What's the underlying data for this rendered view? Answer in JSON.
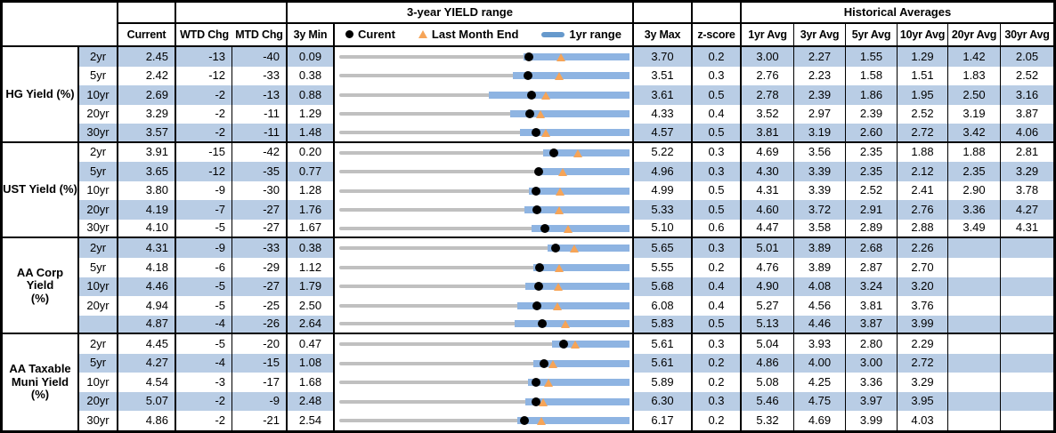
{
  "header": {
    "range_title": "3-year YIELD range",
    "hist_title": "Historical Averages",
    "current": "Current",
    "wtd": "WTD Chg",
    "mtd": "MTD Chg",
    "min3y": "3y Min",
    "max3y": "3y Max",
    "zscore": "z-score",
    "avgs": [
      "1yr Avg",
      "3yr Avg",
      "5yr Avg",
      "10yr Avg",
      "20yr Avg",
      "30yr Avg"
    ],
    "legend": {
      "current": "Curent",
      "last_month": "Last Month End",
      "range": "1yr range"
    }
  },
  "colors": {
    "stripe": "#B9CDE5",
    "bar": "#8EB4E2",
    "legendbar": "#6699CC",
    "track": "#C0C0C0",
    "orange": "#F6A457",
    "border": "#000000"
  },
  "chart_data": {
    "type": "range-dot-table",
    "note": "Each row chart is normalized: left edge = 3y Min, right edge = 3y Max. Dot = current yield, triangle = last month end, blue bar = 1yr range.",
    "groups": [
      {
        "label": "HG Yield (%)",
        "rows": [
          {
            "tenor": "2yr",
            "current": "2.45",
            "wtd": "-13",
            "mtd": "-40",
            "min3y": "0.09",
            "max3y": "3.70",
            "z": "0.2",
            "avgs": [
              "3.00",
              "2.27",
              "1.55",
              "1.29",
              "1.42",
              "2.05"
            ],
            "last_month": 2.85,
            "yr1_lo": 2.38,
            "yr1_hi": 3.7
          },
          {
            "tenor": "5yr",
            "current": "2.42",
            "wtd": "-12",
            "mtd": "-33",
            "min3y": "0.38",
            "max3y": "3.51",
            "z": "0.3",
            "avgs": [
              "2.76",
              "2.23",
              "1.58",
              "1.51",
              "1.83",
              "2.52"
            ],
            "last_month": 2.75,
            "yr1_lo": 2.25,
            "yr1_hi": 3.51
          },
          {
            "tenor": "10yr",
            "current": "2.69",
            "wtd": "-2",
            "mtd": "-13",
            "min3y": "0.88",
            "max3y": "3.61",
            "z": "0.5",
            "avgs": [
              "2.78",
              "2.39",
              "1.86",
              "1.95",
              "2.50",
              "3.16"
            ],
            "last_month": 2.82,
            "yr1_lo": 2.29,
            "yr1_hi": 3.61
          },
          {
            "tenor": "20yr",
            "current": "3.29",
            "wtd": "-2",
            "mtd": "-11",
            "min3y": "1.29",
            "max3y": "4.33",
            "z": "0.4",
            "avgs": [
              "3.52",
              "2.97",
              "2.39",
              "2.52",
              "3.19",
              "3.87"
            ],
            "last_month": 3.4,
            "yr1_lo": 3.08,
            "yr1_hi": 4.33
          },
          {
            "tenor": "30yr",
            "current": "3.57",
            "wtd": "-2",
            "mtd": "-11",
            "min3y": "1.48",
            "max3y": "4.57",
            "z": "0.5",
            "avgs": [
              "3.81",
              "3.19",
              "2.60",
              "2.72",
              "3.42",
              "4.06"
            ],
            "last_month": 3.68,
            "yr1_lo": 3.4,
            "yr1_hi": 4.57
          }
        ]
      },
      {
        "label": "UST Yield (%)",
        "rows": [
          {
            "tenor": "2yr",
            "current": "3.91",
            "wtd": "-15",
            "mtd": "-42",
            "min3y": "0.20",
            "max3y": "5.22",
            "z": "0.3",
            "avgs": [
              "4.69",
              "3.56",
              "2.35",
              "1.88",
              "1.88",
              "2.81"
            ],
            "last_month": 4.33,
            "yr1_lo": 3.73,
            "yr1_hi": 5.22
          },
          {
            "tenor": "5yr",
            "current": "3.65",
            "wtd": "-12",
            "mtd": "-35",
            "min3y": "0.77",
            "max3y": "4.96",
            "z": "0.3",
            "avgs": [
              "4.30",
              "3.39",
              "2.35",
              "2.12",
              "2.35",
              "3.29"
            ],
            "last_month": 4.0,
            "yr1_lo": 3.61,
            "yr1_hi": 4.96
          },
          {
            "tenor": "10yr",
            "current": "3.80",
            "wtd": "-9",
            "mtd": "-30",
            "min3y": "1.28",
            "max3y": "4.99",
            "z": "0.5",
            "avgs": [
              "4.31",
              "3.39",
              "2.52",
              "2.41",
              "2.90",
              "3.78"
            ],
            "last_month": 4.1,
            "yr1_lo": 3.7,
            "yr1_hi": 4.99
          },
          {
            "tenor": "20yr",
            "current": "4.19",
            "wtd": "-7",
            "mtd": "-27",
            "min3y": "1.76",
            "max3y": "5.33",
            "z": "0.5",
            "avgs": [
              "4.60",
              "3.72",
              "2.91",
              "2.76",
              "3.36",
              "4.27"
            ],
            "last_month": 4.46,
            "yr1_lo": 4.04,
            "yr1_hi": 5.33
          },
          {
            "tenor": "30yr",
            "current": "4.10",
            "wtd": "-5",
            "mtd": "-27",
            "min3y": "1.67",
            "max3y": "5.10",
            "z": "0.6",
            "avgs": [
              "4.47",
              "3.58",
              "2.89",
              "2.88",
              "3.49",
              "4.31"
            ],
            "last_month": 4.37,
            "yr1_lo": 3.94,
            "yr1_hi": 5.1
          }
        ]
      },
      {
        "label": "AA Corp Yield\n(%)",
        "rows": [
          {
            "tenor": "2yr",
            "current": "4.31",
            "wtd": "-9",
            "mtd": "-33",
            "min3y": "0.38",
            "max3y": "5.65",
            "z": "0.3",
            "avgs": [
              "5.01",
              "3.89",
              "2.68",
              "2.26",
              "",
              ""
            ],
            "last_month": 4.64,
            "yr1_lo": 4.17,
            "yr1_hi": 5.65
          },
          {
            "tenor": "5yr",
            "current": "4.18",
            "wtd": "-6",
            "mtd": "-29",
            "min3y": "1.12",
            "max3y": "5.55",
            "z": "0.2",
            "avgs": [
              "4.76",
              "3.89",
              "2.87",
              "2.70",
              "",
              ""
            ],
            "last_month": 4.47,
            "yr1_lo": 4.08,
            "yr1_hi": 5.55
          },
          {
            "tenor": "10yr",
            "current": "4.46",
            "wtd": "-5",
            "mtd": "-27",
            "min3y": "1.79",
            "max3y": "5.68",
            "z": "0.4",
            "avgs": [
              "4.90",
              "4.08",
              "3.24",
              "3.20",
              "",
              ""
            ],
            "last_month": 4.73,
            "yr1_lo": 4.28,
            "yr1_hi": 5.68
          },
          {
            "tenor": "20yr",
            "current": "4.94",
            "wtd": "-5",
            "mtd": "-25",
            "min3y": "2.50",
            "max3y": "6.08",
            "z": "0.4",
            "avgs": [
              "5.27",
              "4.56",
              "3.81",
              "3.76",
              "",
              ""
            ],
            "last_month": 5.19,
            "yr1_lo": 4.7,
            "yr1_hi": 6.08
          },
          {
            "tenor": "",
            "current": "4.87",
            "wtd": "-4",
            "mtd": "-26",
            "min3y": "2.64",
            "max3y": "5.83",
            "z": "0.5",
            "avgs": [
              "5.13",
              "4.46",
              "3.87",
              "3.99",
              "",
              ""
            ],
            "last_month": 5.13,
            "yr1_lo": 4.57,
            "yr1_hi": 5.83
          }
        ]
      },
      {
        "label": "AA Taxable\nMuni Yield\n(%)",
        "rows": [
          {
            "tenor": "2yr",
            "current": "4.45",
            "wtd": "-5",
            "mtd": "-20",
            "min3y": "0.47",
            "max3y": "5.61",
            "z": "0.3",
            "avgs": [
              "5.04",
              "3.93",
              "2.80",
              "2.29",
              "",
              ""
            ],
            "last_month": 4.65,
            "yr1_lo": 4.24,
            "yr1_hi": 5.61
          },
          {
            "tenor": "5yr",
            "current": "4.27",
            "wtd": "-4",
            "mtd": "-15",
            "min3y": "1.08",
            "max3y": "5.61",
            "z": "0.2",
            "avgs": [
              "4.86",
              "4.00",
              "3.00",
              "2.72",
              "",
              ""
            ],
            "last_month": 4.42,
            "yr1_lo": 4.11,
            "yr1_hi": 5.61
          },
          {
            "tenor": "10yr",
            "current": "4.54",
            "wtd": "-3",
            "mtd": "-17",
            "min3y": "1.68",
            "max3y": "5.89",
            "z": "0.2",
            "avgs": [
              "5.08",
              "4.25",
              "3.36",
              "3.29",
              "",
              ""
            ],
            "last_month": 4.71,
            "yr1_lo": 4.42,
            "yr1_hi": 5.89
          },
          {
            "tenor": "20yr",
            "current": "5.07",
            "wtd": "-2",
            "mtd": "-9",
            "min3y": "2.48",
            "max3y": "6.30",
            "z": "0.3",
            "avgs": [
              "5.46",
              "4.75",
              "3.97",
              "3.95",
              "",
              ""
            ],
            "last_month": 5.16,
            "yr1_lo": 4.93,
            "yr1_hi": 6.3
          },
          {
            "tenor": "30yr",
            "current": "4.86",
            "wtd": "-2",
            "mtd": "-21",
            "min3y": "2.54",
            "max3y": "6.17",
            "z": "0.2",
            "avgs": [
              "5.32",
              "4.69",
              "3.99",
              "4.03",
              "",
              ""
            ],
            "last_month": 5.07,
            "yr1_lo": 4.77,
            "yr1_hi": 6.17
          }
        ]
      }
    ]
  }
}
